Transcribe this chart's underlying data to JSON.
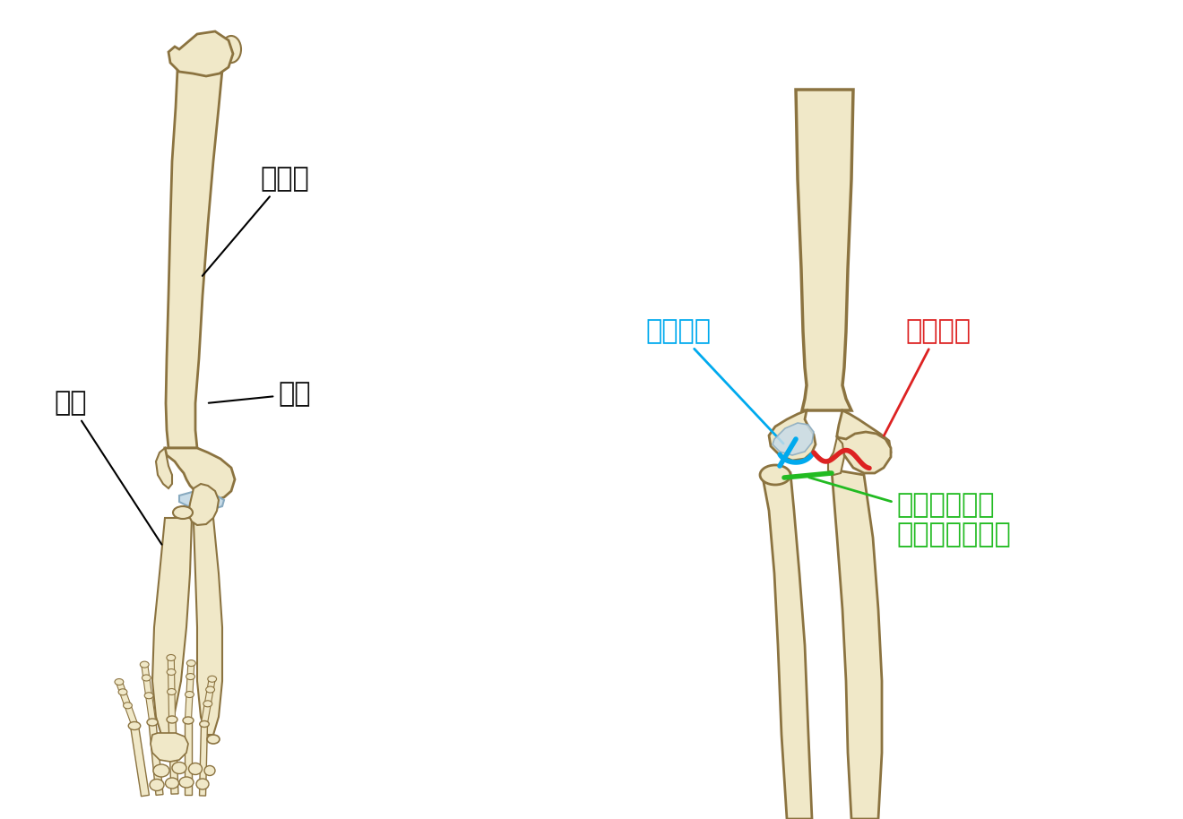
{
  "background_color": "#ffffff",
  "fig_width": 13.2,
  "fig_height": 9.14,
  "dpi": 100,
  "bone_fill": "#f0e8c8",
  "bone_edge": "#8B7340",
  "bone_light": "#f8f0d8",
  "cartilage_fill": "#c8dce8",
  "cartilage_edge": "#88aac0",
  "label_top_humerus": "上腕骨",
  "label_ulna": "尺骨",
  "label_radius": "橈骨",
  "label_radiocap": "腕橈関節",
  "label_humerouln": "腕尺関節",
  "label_proxruln": "近位橈尺関節\n（上橈尺関節）",
  "color_radiocap": "#00aaee",
  "color_humerouln": "#dd2222",
  "color_proxruln": "#22bb22",
  "color_black": "#111111",
  "fontsize_label": 20
}
